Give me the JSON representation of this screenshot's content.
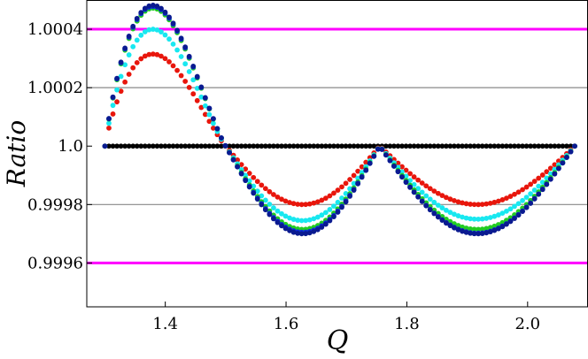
{
  "chart_data": {
    "type": "scatter",
    "xlabel": "Q",
    "ylabel": "Ratio",
    "xlim": [
      1.27,
      2.1
    ],
    "ylim": [
      0.99945,
      1.0005
    ],
    "xticks": [
      {
        "value": 1.4,
        "label": "1.4"
      },
      {
        "value": 1.6,
        "label": "1.6"
      },
      {
        "value": 1.8,
        "label": "1.8"
      },
      {
        "value": 2.0,
        "label": "2.0"
      }
    ],
    "yticks": [
      {
        "value": 1.0004,
        "label": "1.0004"
      },
      {
        "value": 1.0002,
        "label": "1.0002"
      },
      {
        "value": 1.0,
        "label": "1.0"
      },
      {
        "value": 0.9998,
        "label": "0.9998"
      },
      {
        "value": 0.9996,
        "label": "0.9996"
      }
    ],
    "gridlines": [
      {
        "y": 1.0002,
        "color": "#888888"
      },
      {
        "y": 0.9998,
        "color": "#888888"
      }
    ],
    "reference_lines": [
      {
        "y": 1.0004,
        "color": "#ff00ff"
      },
      {
        "y": 0.9996,
        "color": "#ff00ff"
      }
    ],
    "x_range": [
      1.3,
      2.078
    ],
    "points_per_series": 118,
    "series": [
      {
        "color": "#000000",
        "peak": 0.0,
        "trough1": 0.0,
        "trough2": 0.0
      },
      {
        "color": "#e8160c",
        "peak": 0.000315,
        "trough1": -0.0002,
        "trough2": -0.0002
      },
      {
        "color": "#18e8f0",
        "peak": 0.0004,
        "trough1": -0.000255,
        "trough2": -0.00025
      },
      {
        "color": "#22cc22",
        "peak": 0.000472,
        "trough1": -0.000285,
        "trough2": -0.000285
      },
      {
        "color": "#0b2bd8",
        "peak": 0.000478,
        "trough1": -0.000295,
        "trough2": -0.000298
      },
      {
        "color": "#0a1a90",
        "peak": 0.000482,
        "trough1": -0.0003,
        "trough2": -0.0003
      }
    ],
    "grid": false,
    "legend": "none"
  }
}
